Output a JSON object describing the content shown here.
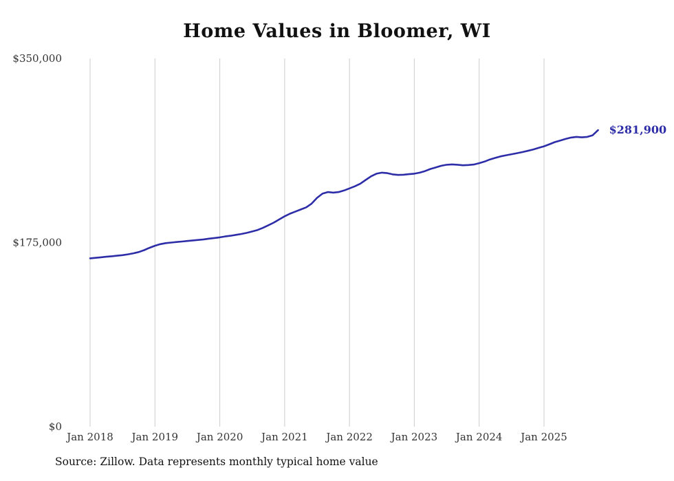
{
  "chart_data": {
    "type": "line",
    "title": "Home Values in Bloomer, WI",
    "source": "Source: Zillow. Data represents monthly typical home value",
    "end_label": "$281,900",
    "line_color": "#2d2da8",
    "grid_color": "#cccccc",
    "grid": "vertical",
    "legend": "none",
    "ylim": [
      0,
      350000
    ],
    "y_ticks": [
      {
        "v": 0,
        "label": "$0"
      },
      {
        "v": 175000,
        "label": "$175,000"
      },
      {
        "v": 350000,
        "label": "$350,000"
      }
    ],
    "x_ticks": [
      {
        "i": 0,
        "label": "Jan 2018"
      },
      {
        "i": 12,
        "label": "Jan 2019"
      },
      {
        "i": 24,
        "label": "Jan 2020"
      },
      {
        "i": 36,
        "label": "Jan 2021"
      },
      {
        "i": 48,
        "label": "Jan 2022"
      },
      {
        "i": 60,
        "label": "Jan 2023"
      },
      {
        "i": 72,
        "label": "Jan 2024"
      },
      {
        "i": 84,
        "label": "Jan 2025"
      }
    ],
    "x": [
      "2018-01",
      "2018-02",
      "2018-03",
      "2018-04",
      "2018-05",
      "2018-06",
      "2018-07",
      "2018-08",
      "2018-09",
      "2018-10",
      "2018-11",
      "2018-12",
      "2019-01",
      "2019-02",
      "2019-03",
      "2019-04",
      "2019-05",
      "2019-06",
      "2019-07",
      "2019-08",
      "2019-09",
      "2019-10",
      "2019-11",
      "2019-12",
      "2020-01",
      "2020-02",
      "2020-03",
      "2020-04",
      "2020-05",
      "2020-06",
      "2020-07",
      "2020-08",
      "2020-09",
      "2020-10",
      "2020-11",
      "2020-12",
      "2021-01",
      "2021-02",
      "2021-03",
      "2021-04",
      "2021-05",
      "2021-06",
      "2021-07",
      "2021-08",
      "2021-09",
      "2021-10",
      "2021-11",
      "2021-12",
      "2022-01",
      "2022-02",
      "2022-03",
      "2022-04",
      "2022-05",
      "2022-06",
      "2022-07",
      "2022-08",
      "2022-09",
      "2022-10",
      "2022-11",
      "2022-12",
      "2023-01",
      "2023-02",
      "2023-03",
      "2023-04",
      "2023-05",
      "2023-06",
      "2023-07",
      "2023-08",
      "2023-09",
      "2023-10",
      "2023-11",
      "2023-12",
      "2024-01",
      "2024-02",
      "2024-03",
      "2024-04",
      "2024-05",
      "2024-06",
      "2024-07",
      "2024-08",
      "2024-09",
      "2024-10",
      "2024-11",
      "2024-12",
      "2025-01",
      "2025-02",
      "2025-03",
      "2025-04",
      "2025-05",
      "2025-06",
      "2025-07",
      "2025-08",
      "2025-09",
      "2025-10",
      "2025-11"
    ],
    "values": [
      160000,
      160500,
      161000,
      161500,
      162000,
      162500,
      163000,
      163800,
      164800,
      166000,
      167800,
      170000,
      172000,
      173500,
      174500,
      175000,
      175500,
      176000,
      176500,
      177000,
      177500,
      178000,
      178700,
      179300,
      180000,
      180800,
      181500,
      182300,
      183200,
      184200,
      185500,
      187000,
      189000,
      191500,
      194000,
      197000,
      200000,
      202500,
      204500,
      206500,
      208500,
      212000,
      217500,
      221500,
      223000,
      222500,
      223000,
      224500,
      226500,
      228500,
      231000,
      234500,
      238000,
      240500,
      241500,
      241000,
      239800,
      239300,
      239500,
      240000,
      240500,
      241500,
      243000,
      245000,
      246500,
      248000,
      249000,
      249300,
      249000,
      248500,
      248700,
      249200,
      250500,
      252000,
      254000,
      255500,
      257000,
      258000,
      259000,
      260000,
      261000,
      262200,
      263500,
      265000,
      266500,
      268500,
      270500,
      272000,
      273500,
      274800,
      275500,
      275000,
      275500,
      277000,
      281900
    ]
  }
}
